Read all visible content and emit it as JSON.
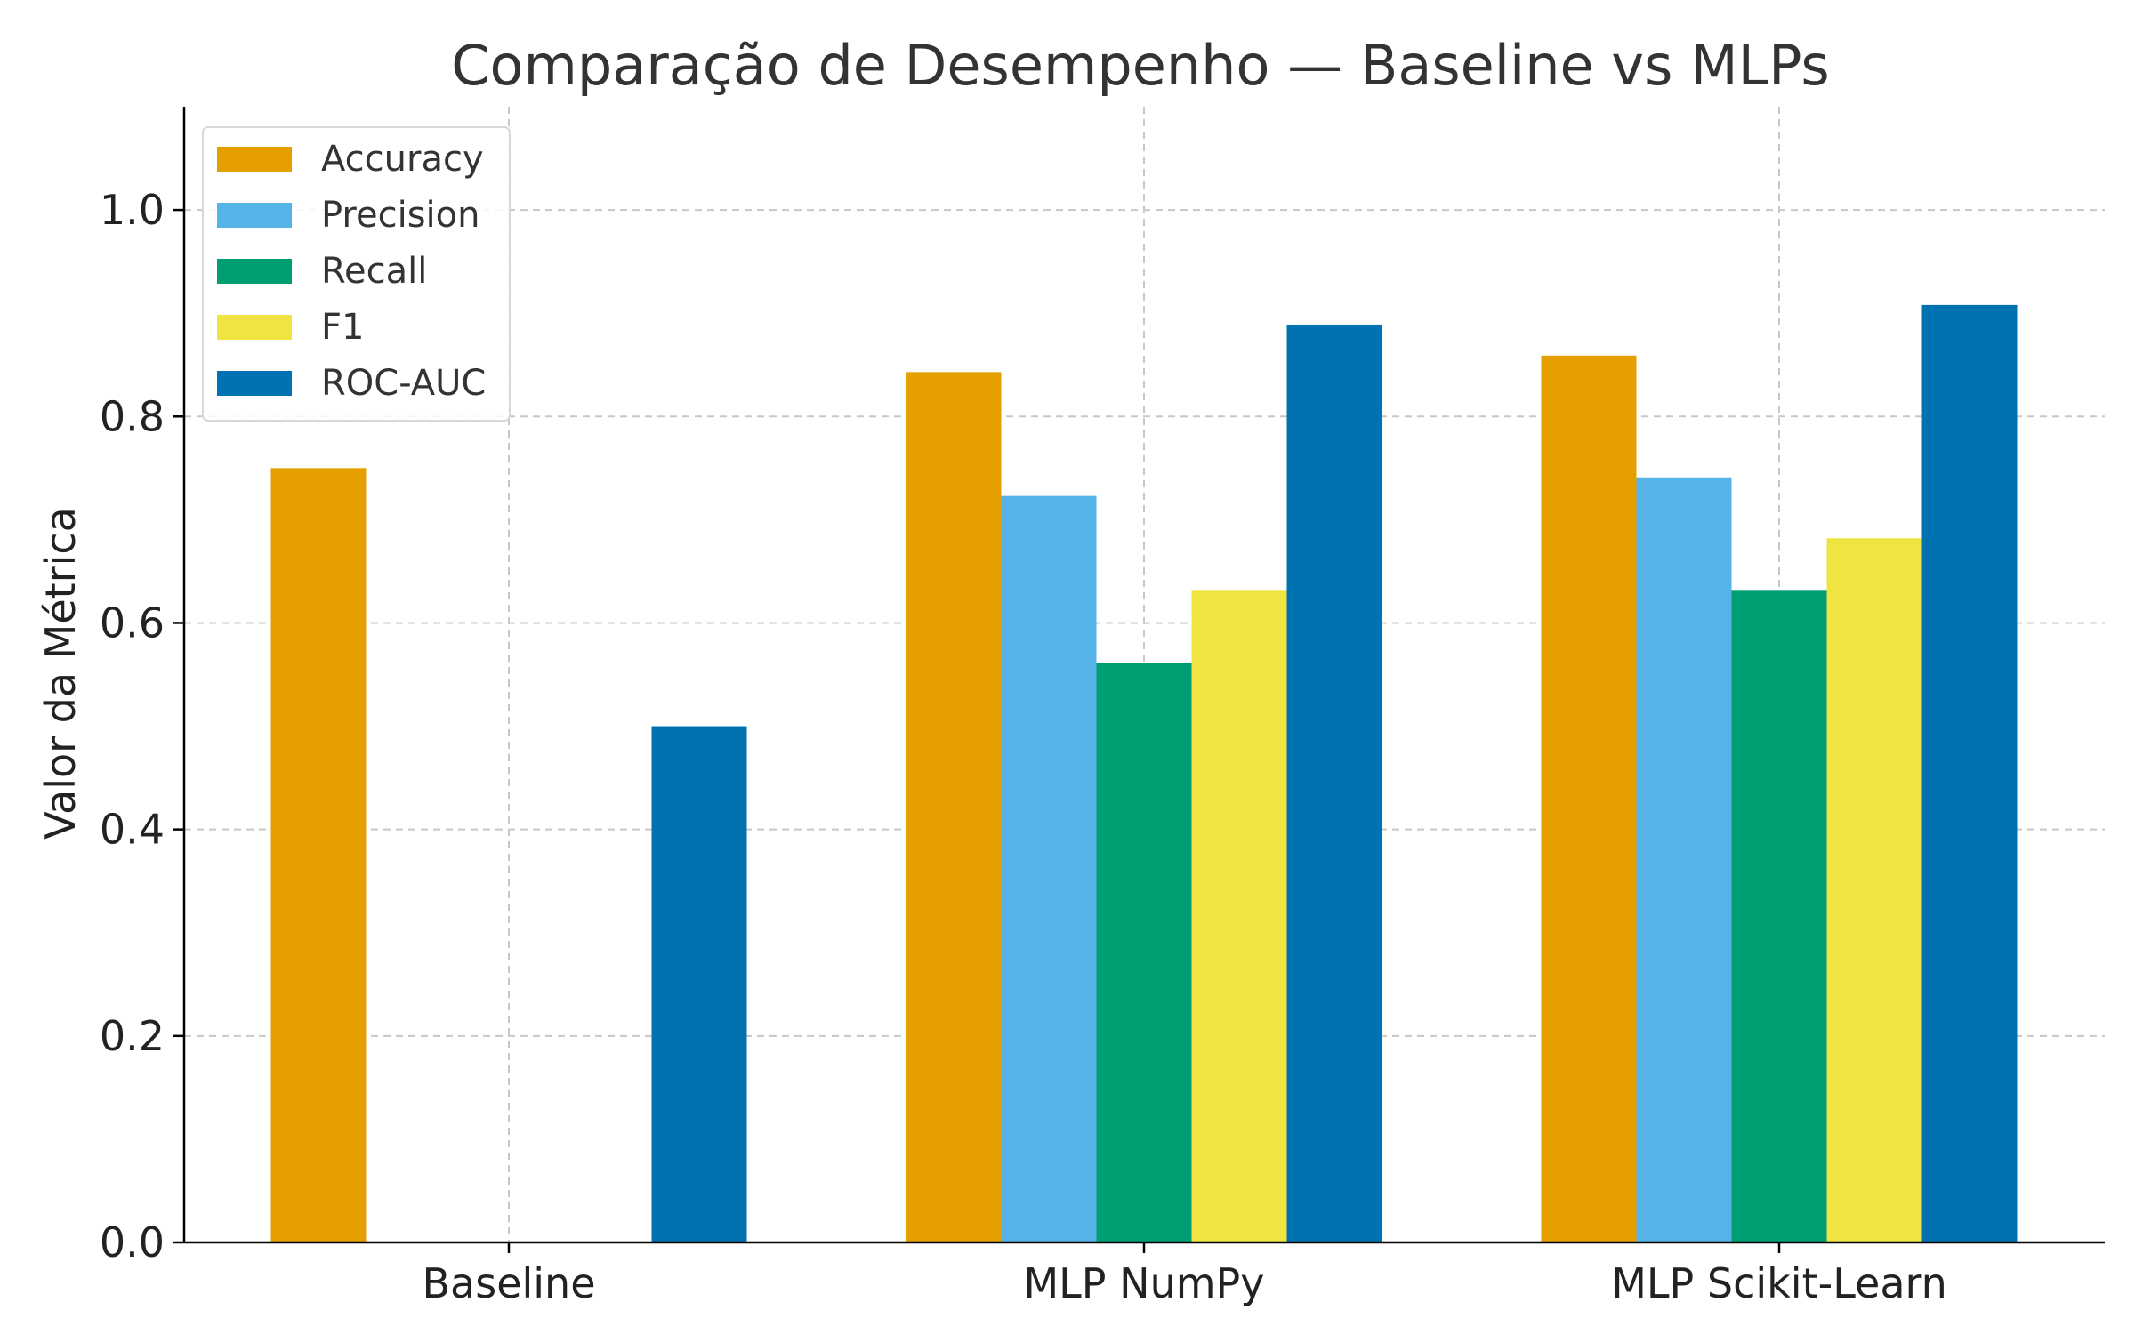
{
  "chart_data": {
    "type": "bar",
    "title": "Comparação de Desempenho — Baseline vs MLPs",
    "xlabel": "",
    "ylabel": "Valor da Métrica",
    "categories": [
      "Baseline",
      "MLP NumPy",
      "MLP Scikit-Learn"
    ],
    "ylim": [
      0,
      1.1
    ],
    "yticks": [
      "0.0",
      "0.2",
      "0.4",
      "0.6",
      "0.8",
      "1.0"
    ],
    "ytick_values": [
      0.0,
      0.2,
      0.4,
      0.6,
      0.8,
      1.0
    ],
    "grid": true,
    "legend_position": "top-left",
    "series": [
      {
        "name": "Accuracy",
        "color": "#E69F00",
        "values": [
          0.75,
          0.843,
          0.859
        ]
      },
      {
        "name": "Precision",
        "color": "#56B4E9",
        "values": [
          0.0,
          0.723,
          0.741
        ]
      },
      {
        "name": "Recall",
        "color": "#009E73",
        "values": [
          0.0,
          0.561,
          0.632
        ]
      },
      {
        "name": "F1",
        "color": "#F0E442",
        "values": [
          0.0,
          0.632,
          0.682
        ]
      },
      {
        "name": "ROC-AUC",
        "color": "#0072B2",
        "values": [
          0.5,
          0.889,
          0.908
        ]
      }
    ]
  }
}
